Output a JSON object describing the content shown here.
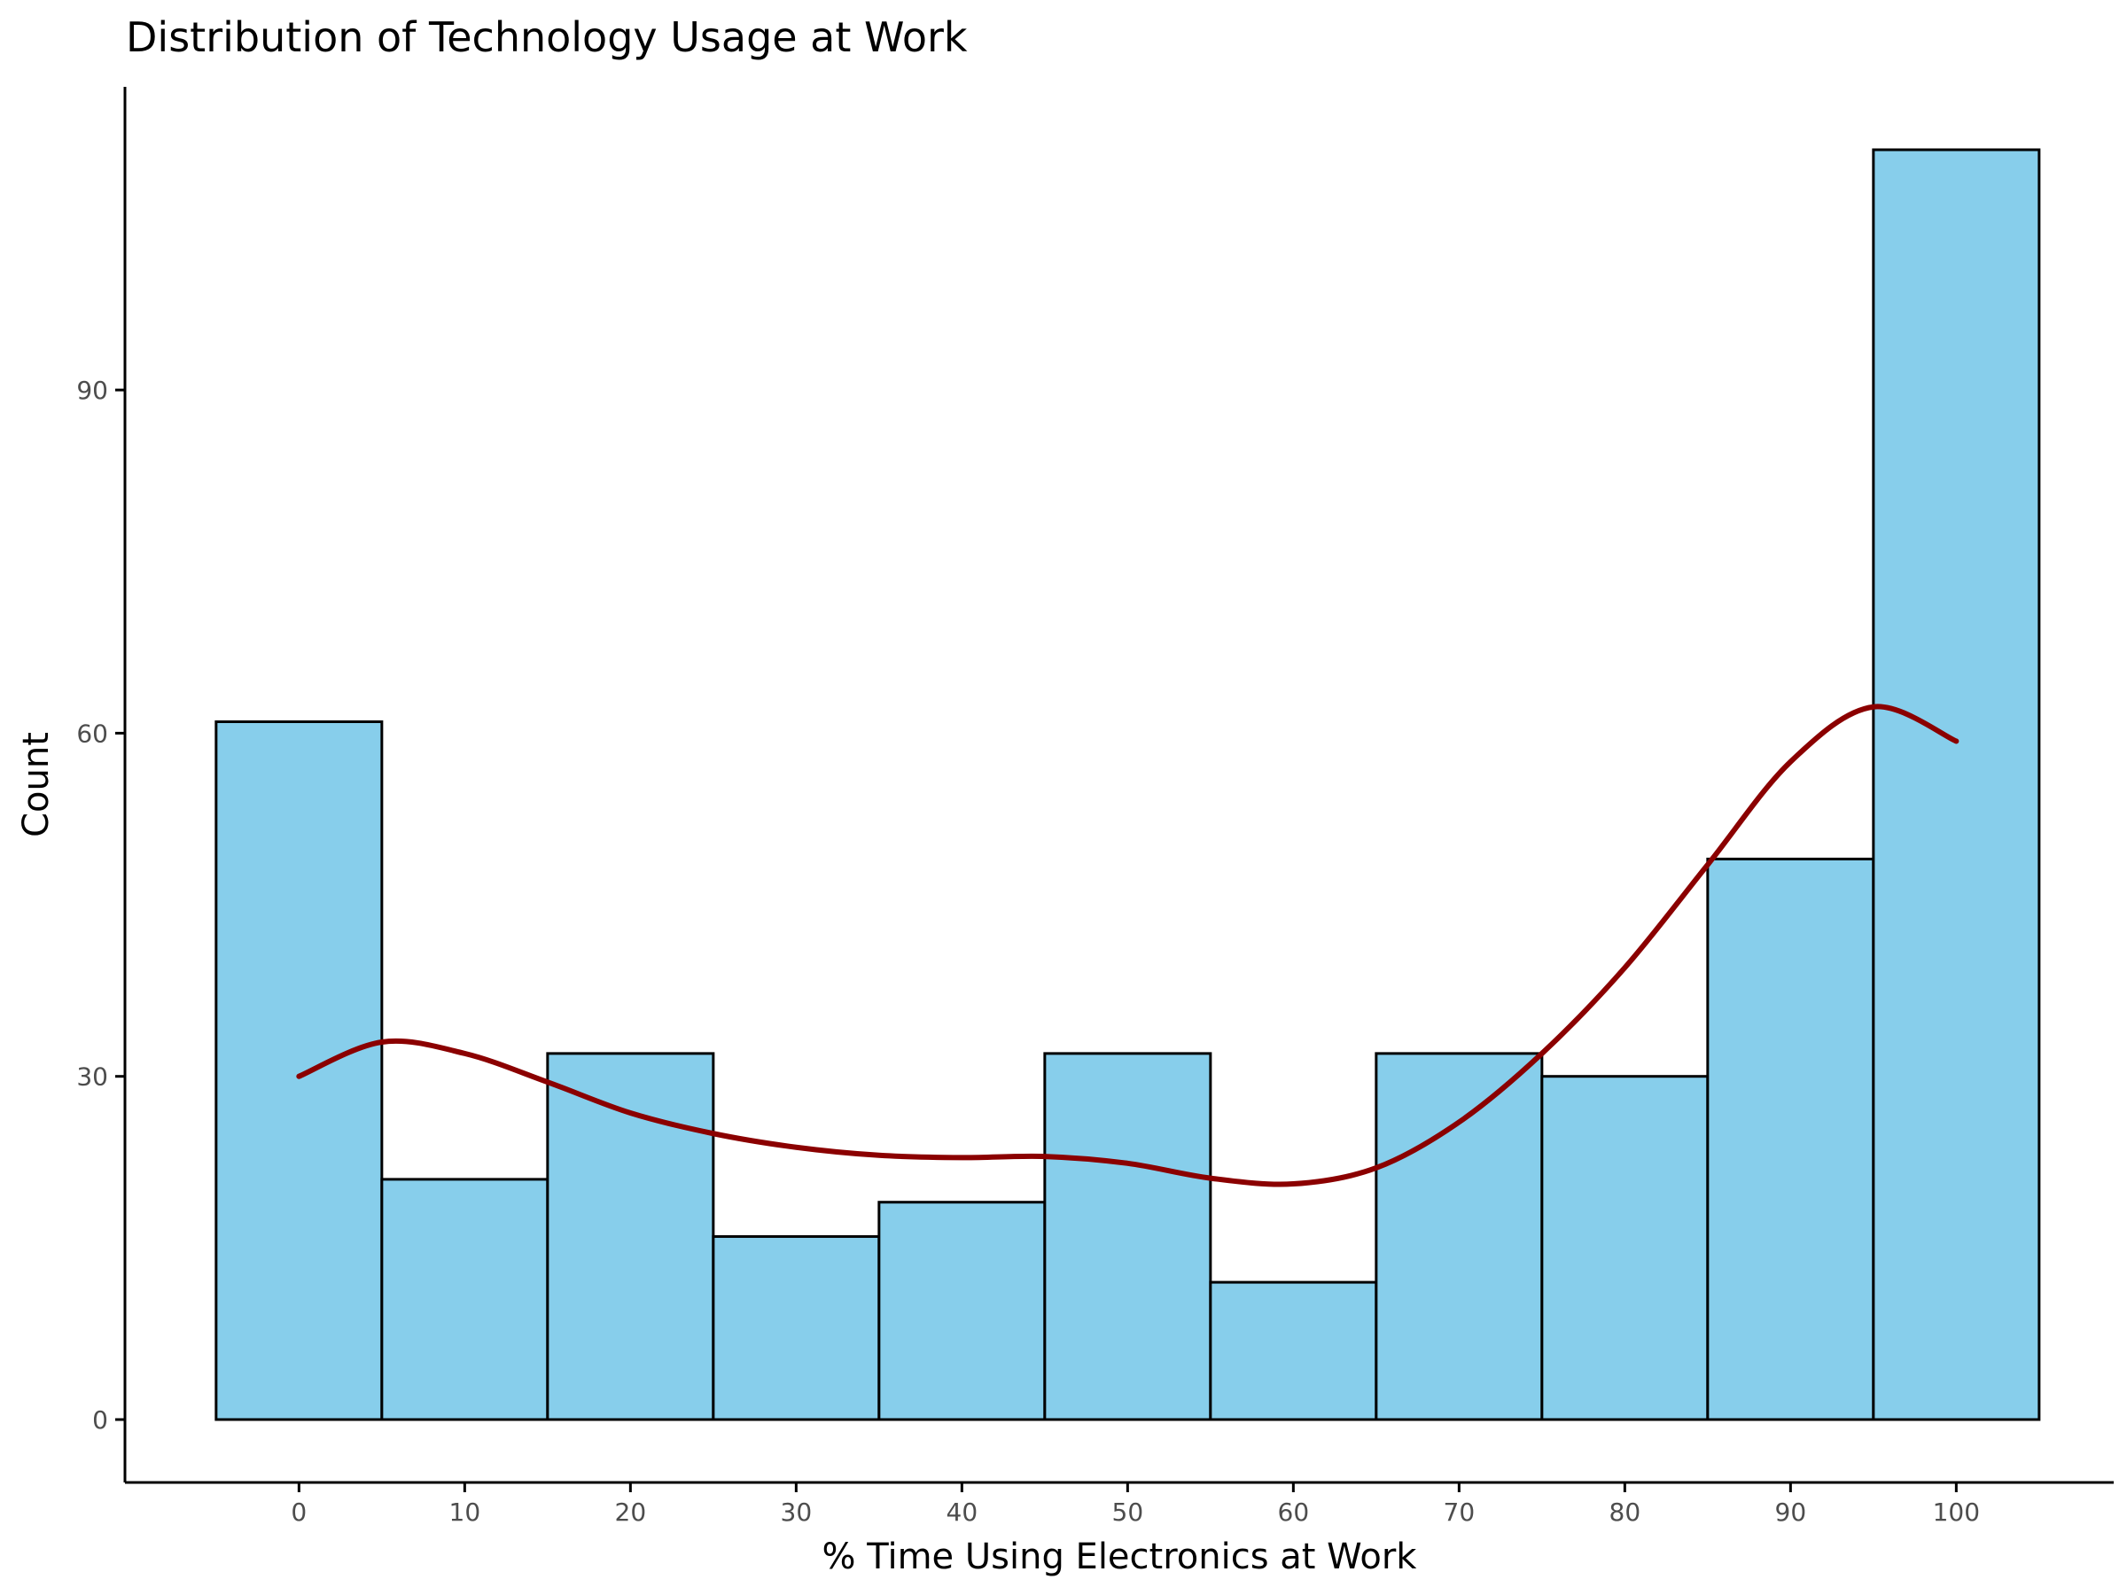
{
  "chart_data": {
    "type": "bar",
    "title": "Distribution of Technology Usage at Work",
    "xlabel": "% Time Using Electronics at Work",
    "ylabel": "Count",
    "bins": [
      {
        "x0": -5,
        "x1": 5,
        "count": 61
      },
      {
        "x0": 5,
        "x1": 15,
        "count": 21
      },
      {
        "x0": 15,
        "x1": 25,
        "count": 32
      },
      {
        "x0": 25,
        "x1": 35,
        "count": 16
      },
      {
        "x0": 35,
        "x1": 45,
        "count": 19
      },
      {
        "x0": 45,
        "x1": 55,
        "count": 32
      },
      {
        "x0": 55,
        "x1": 65,
        "count": 12
      },
      {
        "x0": 65,
        "x1": 75,
        "count": 32
      },
      {
        "x0": 75,
        "x1": 85,
        "count": 30
      },
      {
        "x0": 85,
        "x1": 95,
        "count": 49
      },
      {
        "x0": 95,
        "x1": 105,
        "count": 111
      }
    ],
    "density_curve": {
      "x": [
        0,
        5,
        10,
        15,
        20,
        25,
        30,
        35,
        40,
        45,
        50,
        55,
        60,
        65,
        70,
        75,
        80,
        85,
        90,
        95,
        100
      ],
      "y": [
        30,
        33,
        32,
        29.5,
        26.8,
        25,
        23.8,
        23.1,
        22.9,
        23,
        22.4,
        21.1,
        20.6,
        22,
        26,
        32,
        39.5,
        48.5,
        57.5,
        62.3,
        59.3
      ]
    },
    "x_ticks": [
      0,
      10,
      20,
      30,
      40,
      50,
      60,
      70,
      80,
      90,
      100
    ],
    "y_ticks": [
      0,
      30,
      60,
      90
    ],
    "xlim": [
      -10.5,
      109.5
    ],
    "ylim": [
      -5.5,
      116.5
    ],
    "grid": false,
    "legend": "none",
    "colors": {
      "bar_fill": "#87ceeb",
      "bar_stroke": "#000000",
      "curve": "#8b0000",
      "axis": "#000000",
      "tick_label": "#4d4d4d"
    }
  }
}
